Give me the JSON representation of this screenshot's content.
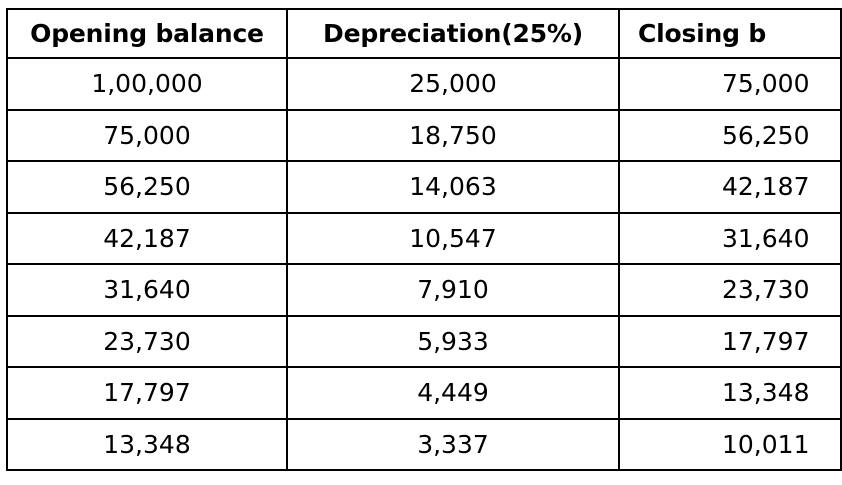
{
  "table": {
    "headers": [
      "Opening balance",
      "Depreciation(25%)",
      "Closing b"
    ],
    "rows": [
      [
        "1,00,000",
        "25,000",
        "75,000"
      ],
      [
        "75,000",
        "18,750",
        "56,250"
      ],
      [
        "56,250",
        "14,063",
        "42,187"
      ],
      [
        "42,187",
        "10,547",
        "31,640"
      ],
      [
        "31,640",
        "7,910",
        "23,730"
      ],
      [
        "23,730",
        "5,933",
        "17,797"
      ],
      [
        "17,797",
        "4,449",
        "13,348"
      ],
      [
        "13,348",
        "3,337",
        "10,011"
      ]
    ]
  }
}
